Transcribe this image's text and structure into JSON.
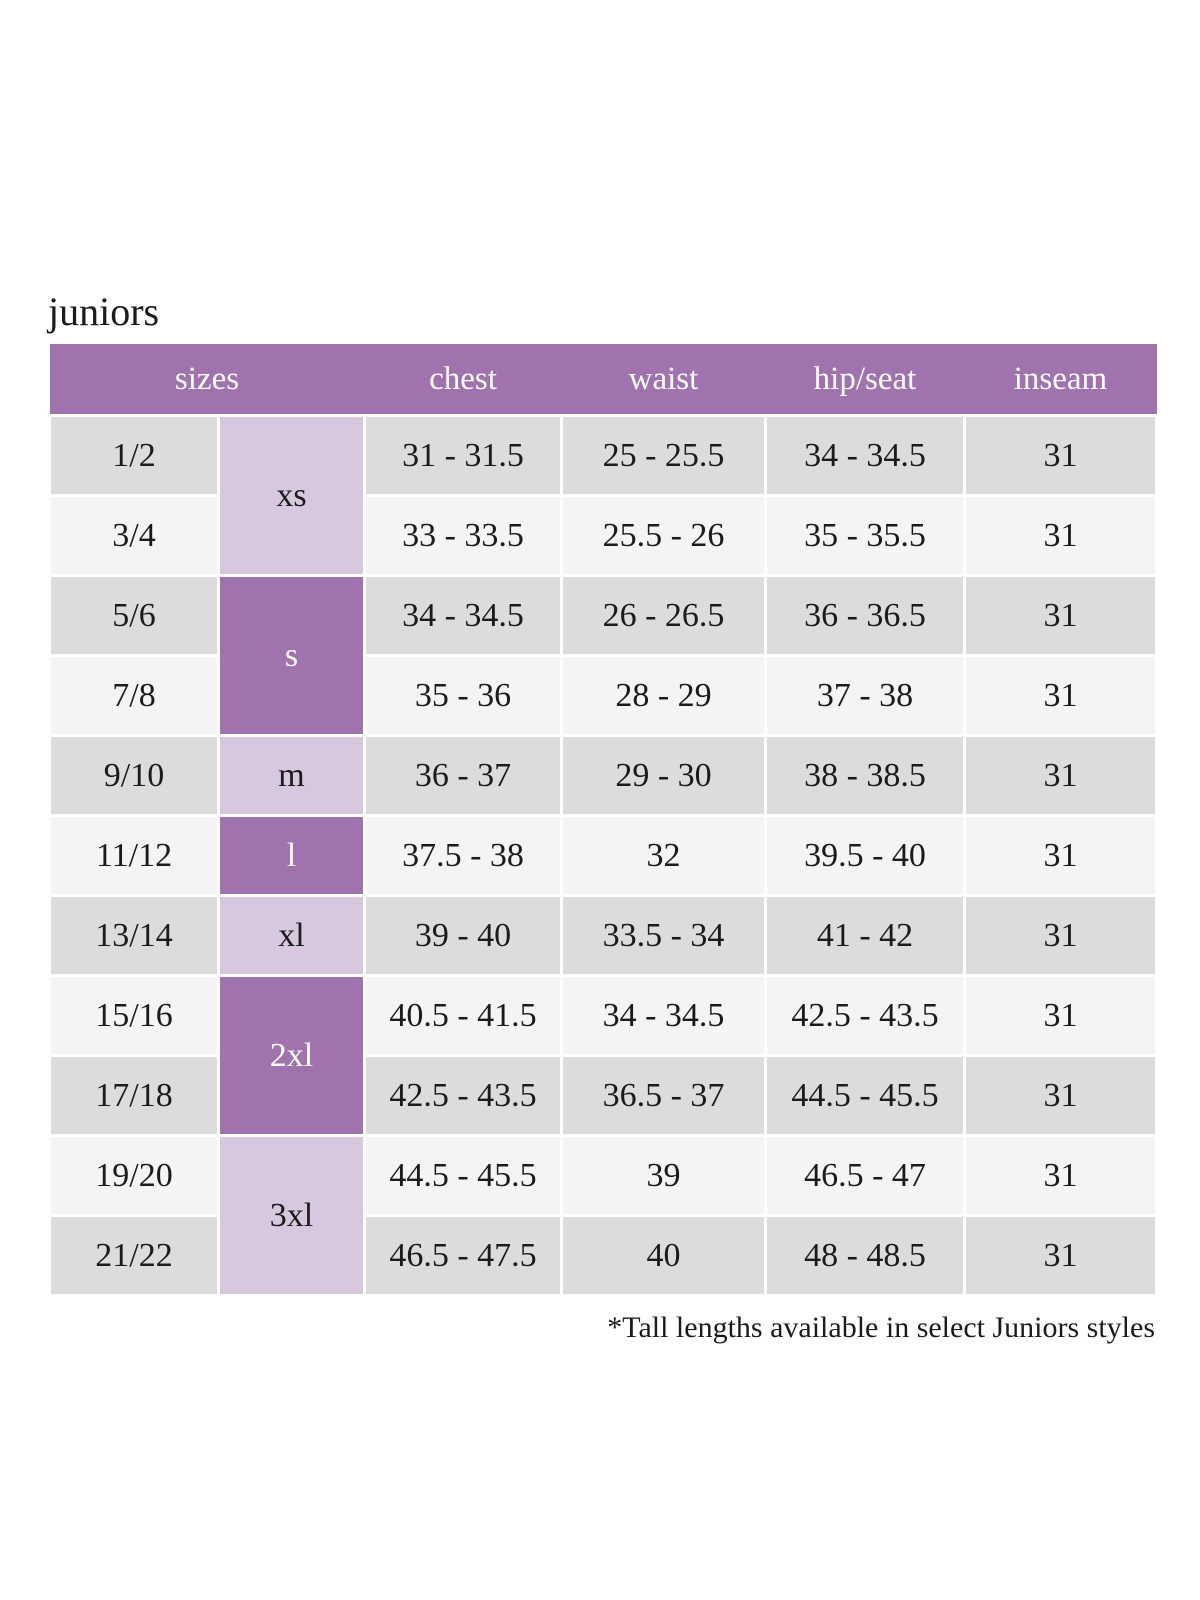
{
  "page": {
    "title": "juniors",
    "footnote": "*Tall lengths available in select Juniors styles"
  },
  "colors": {
    "header_purple": "#a072ae",
    "light_purple": "#d7c7df",
    "row_shade_dark": "#dcdcdc",
    "row_shade_light": "#f4f4f4",
    "header_text": "#fdfdfd",
    "body_text": "#1b1b1b"
  },
  "table": {
    "headers": [
      "sizes",
      "chest",
      "waist",
      "hip/seat",
      "inseam"
    ],
    "groups": [
      {
        "label": "xs",
        "span": 2,
        "tone": "light"
      },
      {
        "label": "s",
        "span": 2,
        "tone": "dark"
      },
      {
        "label": "m",
        "span": 1,
        "tone": "light"
      },
      {
        "label": "l",
        "span": 1,
        "tone": "dark"
      },
      {
        "label": "xl",
        "span": 1,
        "tone": "light"
      },
      {
        "label": "2xl",
        "span": 2,
        "tone": "dark"
      },
      {
        "label": "3xl",
        "span": 2,
        "tone": "light"
      }
    ],
    "rows": [
      {
        "size": "1/2",
        "chest": "31 - 31.5",
        "waist": "25 - 25.5",
        "hip_seat": "34 - 34.5",
        "inseam": "31"
      },
      {
        "size": "3/4",
        "chest": "33 - 33.5",
        "waist": "25.5 - 26",
        "hip_seat": "35 - 35.5",
        "inseam": "31"
      },
      {
        "size": "5/6",
        "chest": "34 - 34.5",
        "waist": "26 - 26.5",
        "hip_seat": "36 - 36.5",
        "inseam": "31"
      },
      {
        "size": "7/8",
        "chest": "35 - 36",
        "waist": "28 - 29",
        "hip_seat": "37 - 38",
        "inseam": "31"
      },
      {
        "size": "9/10",
        "chest": "36 - 37",
        "waist": "29 - 30",
        "hip_seat": "38 - 38.5",
        "inseam": "31"
      },
      {
        "size": "11/12",
        "chest": "37.5 - 38",
        "waist": "32",
        "hip_seat": "39.5 - 40",
        "inseam": "31"
      },
      {
        "size": "13/14",
        "chest": "39 - 40",
        "waist": "33.5 - 34",
        "hip_seat": "41 - 42",
        "inseam": "31"
      },
      {
        "size": "15/16",
        "chest": "40.5 - 41.5",
        "waist": "34 - 34.5",
        "hip_seat": "42.5 - 43.5",
        "inseam": "31"
      },
      {
        "size": "17/18",
        "chest": "42.5 - 43.5",
        "waist": "36.5 - 37",
        "hip_seat": "44.5 - 45.5",
        "inseam": "31"
      },
      {
        "size": "19/20",
        "chest": "44.5 - 45.5",
        "waist": "39",
        "hip_seat": "46.5 - 47",
        "inseam": "31"
      },
      {
        "size": "21/22",
        "chest": "46.5 - 47.5",
        "waist": "40",
        "hip_seat": "48 - 48.5",
        "inseam": "31"
      }
    ]
  }
}
